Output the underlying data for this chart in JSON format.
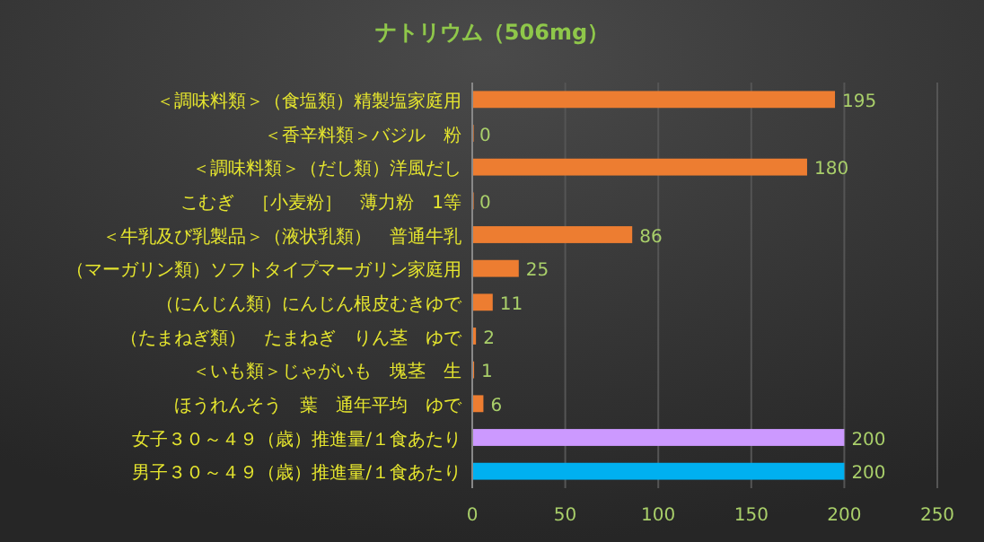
{
  "chart_data": {
    "type": "bar",
    "orientation": "horizontal",
    "title": "ナトリウム（506mg）",
    "categories": [
      "＜調味料類＞（食塩類）精製塩家庭用",
      "＜香辛料類＞バジル　粉",
      "＜調味料類＞（だし類）洋風だし",
      "こむぎ　［小麦粉］　薄力粉　1等",
      "＜牛乳及び乳製品＞（液状乳類）　普通牛乳",
      "（マーガリン類）ソフトタイプマーガリン家庭用",
      "（にんじん類）にんじん根皮むきゆで",
      "（たまねぎ類）　たまねぎ　りん茎　ゆで",
      "＜いも類＞じゃがいも　塊茎　生",
      "ほうれんそう　葉　通年平均　ゆで",
      "女子３０～４９（歳）推進量/１食あたり",
      "男子３０～４９（歳）推進量/１食あたり"
    ],
    "values": [
      195,
      0,
      180,
      0,
      86,
      25,
      11,
      2,
      1,
      6,
      200,
      200
    ],
    "colors": [
      "#ed7d31",
      "#ed7d31",
      "#ed7d31",
      "#ed7d31",
      "#ed7d31",
      "#ed7d31",
      "#ed7d31",
      "#ed7d31",
      "#ed7d31",
      "#ed7d31",
      "#cc99ff",
      "#00b0f0"
    ],
    "xlim": [
      0,
      250
    ],
    "xticks": [
      0,
      50,
      100,
      150,
      200,
      250
    ],
    "grid": "x",
    "data_labels": true
  }
}
